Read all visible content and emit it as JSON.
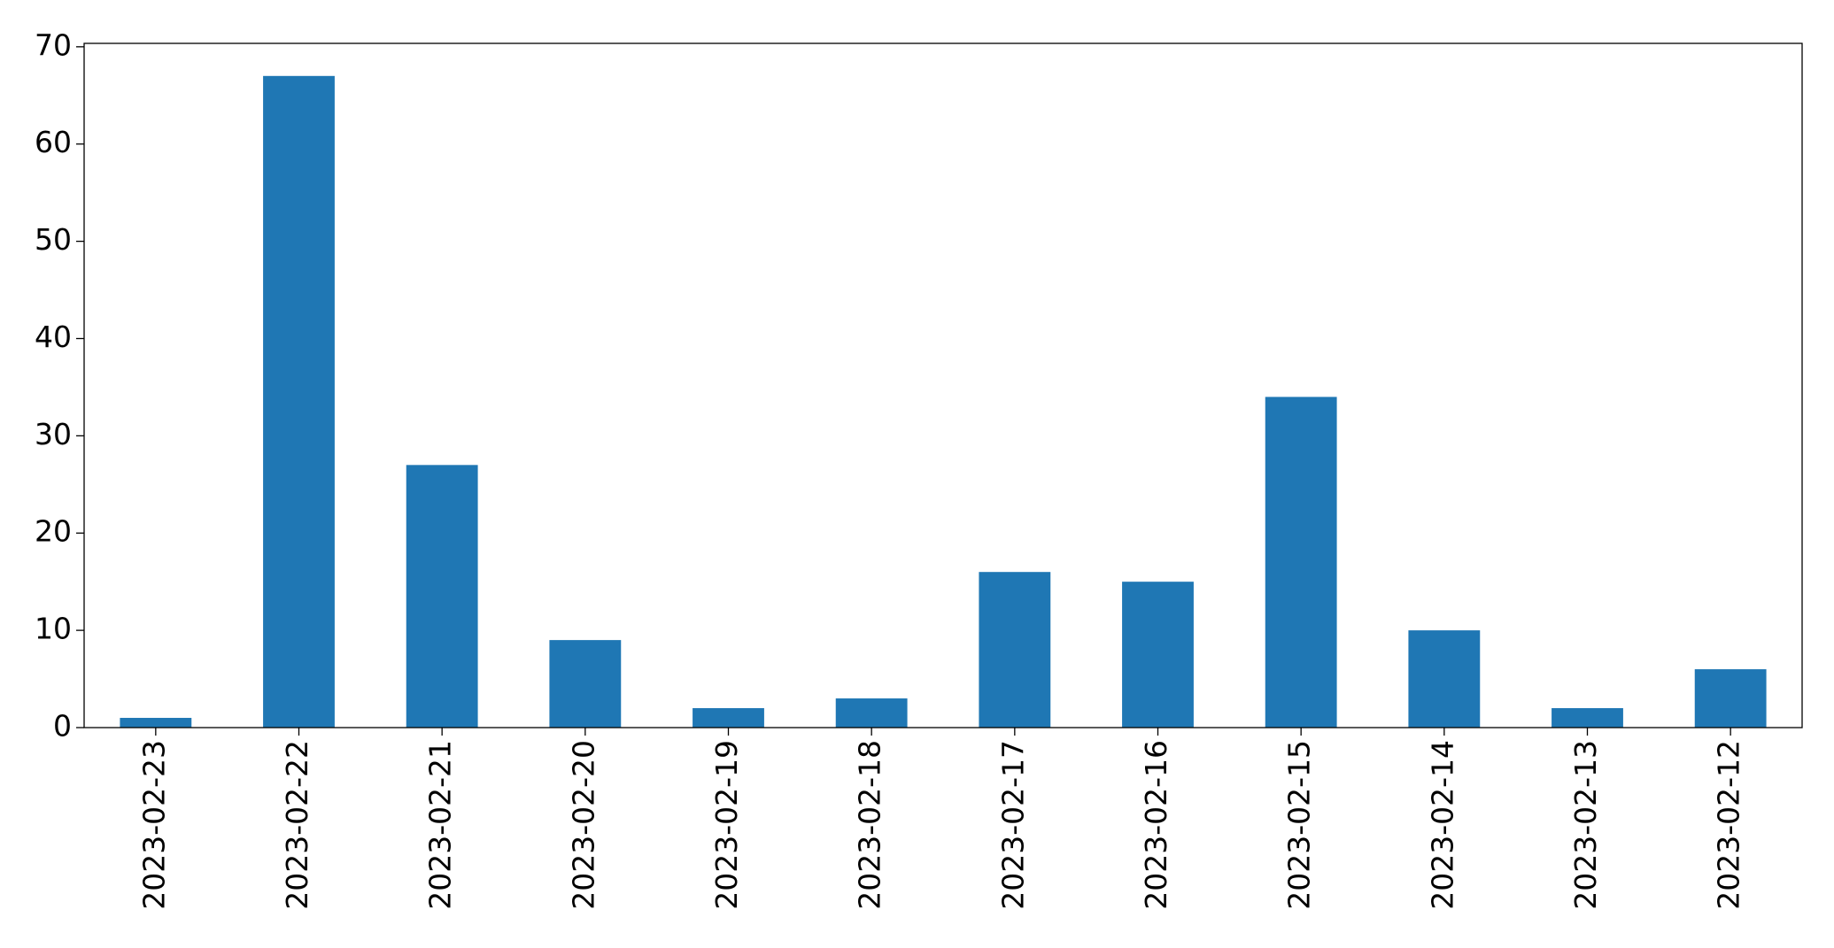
{
  "chart_data": {
    "type": "bar",
    "categories": [
      "2023-02-23",
      "2023-02-22",
      "2023-02-21",
      "2023-02-20",
      "2023-02-19",
      "2023-02-18",
      "2023-02-17",
      "2023-02-16",
      "2023-02-15",
      "2023-02-14",
      "2023-02-13",
      "2023-02-12"
    ],
    "values": [
      1,
      67,
      27,
      9,
      2,
      3,
      16,
      15,
      34,
      10,
      2,
      6
    ],
    "color": "#1f77b4",
    "ylim": [
      0,
      70.35
    ],
    "yticks": [
      0,
      10,
      20,
      30,
      40,
      50,
      60,
      70
    ],
    "grid": false
  }
}
